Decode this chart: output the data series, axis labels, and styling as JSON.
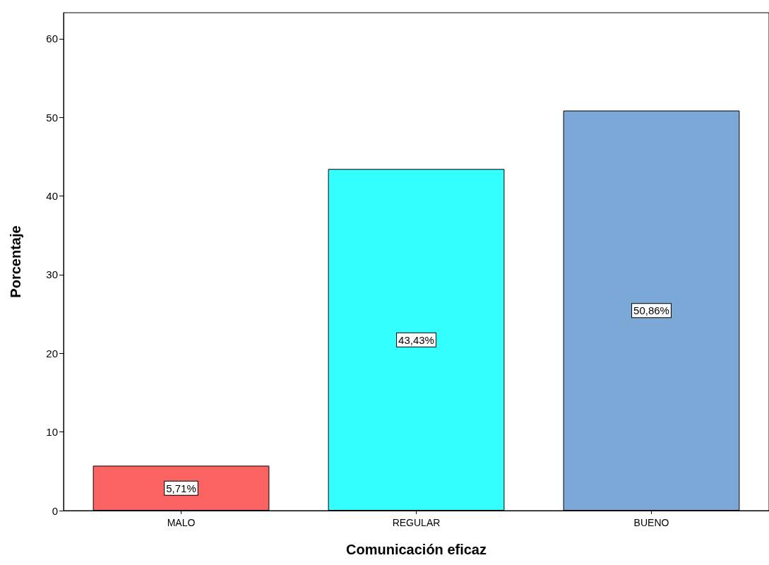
{
  "chart_data": {
    "type": "bar",
    "xlabel": "Comunicación eficaz",
    "ylabel": "Porcentaje",
    "categories": [
      "MALO",
      "REGULAR",
      "BUENO"
    ],
    "values": [
      5.71,
      43.43,
      50.86
    ],
    "colors": [
      "#fb6363",
      "#33ffff",
      "#7ba8d6"
    ],
    "value_labels": [
      "5,71%",
      "43,43%",
      "50,86%"
    ],
    "ylim": [
      0,
      63.3
    ],
    "yticks": [
      0,
      10,
      20,
      30,
      40,
      50,
      60
    ],
    "grid": false
  }
}
